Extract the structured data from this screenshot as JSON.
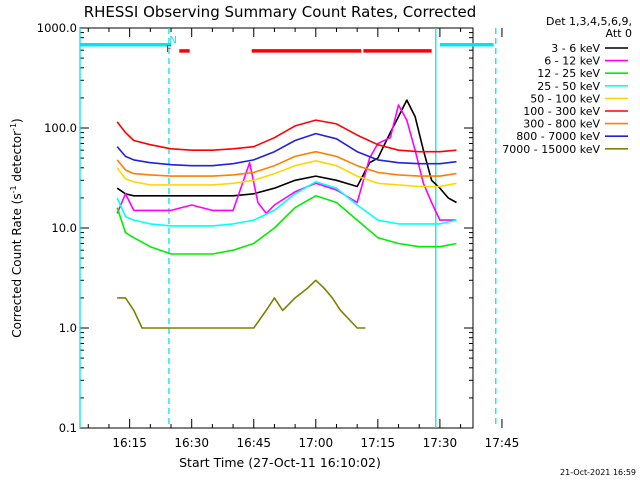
{
  "chart_data": {
    "type": "line",
    "title": "RHESSI Observing Summary Count Rates, Corrected",
    "xlabel": "Start Time (27-Oct-11 16:10:02)",
    "ylabel_main": "Corrected Count Rate (s",
    "ylabel_sup": "-1",
    "ylabel_mid": " detector",
    "ylabel_sup2": "-1",
    "ylabel_end": ")",
    "yscale": "log",
    "ylim": [
      0.1,
      1000
    ],
    "xlim_minutes": [
      3.0,
      98.0
    ],
    "y_ticks": [
      {
        "value": 0.1,
        "label": "0.1"
      },
      {
        "value": 1,
        "label": "1.0"
      },
      {
        "value": 10,
        "label": "10.0"
      },
      {
        "value": 100,
        "label": "100.0"
      },
      {
        "value": 1000,
        "label": "1000.0"
      }
    ],
    "x_ticks": [
      {
        "value": 15,
        "label": "16:15"
      },
      {
        "value": 30,
        "label": "16:30"
      },
      {
        "value": 45,
        "label": "16:45"
      },
      {
        "value": 60,
        "label": "17:00"
      },
      {
        "value": 75,
        "label": "17:15"
      },
      {
        "value": 90,
        "label": "17:30"
      },
      {
        "value": 105,
        "label": "17:45"
      }
    ],
    "legend_header": [
      "Det 1,3,4,5,6,9,",
      "Att 0"
    ],
    "legend_placement": "right",
    "footer": "21-Oct-2021 16:59",
    "night_lines": [
      {
        "minute": 24.5,
        "style": "dashed"
      },
      {
        "minute": 103.5,
        "style": "dashed"
      },
      {
        "minute": 3.0,
        "style": "solid"
      },
      {
        "minute": 89.0,
        "style": "solid"
      }
    ],
    "markers": [
      {
        "label": "N",
        "minute": 25.5,
        "color": "#00e5ee"
      },
      {
        "label": "F",
        "minute": 24.5,
        "color": "#ff0000"
      }
    ],
    "saa_bars": [
      {
        "start": 3.0,
        "end": 25.0,
        "value": 680
      },
      {
        "start": 90.0,
        "end": 103.0,
        "value": 680
      }
    ],
    "flare_bars": [
      {
        "start": 27.0,
        "end": 29.5,
        "value": 590
      },
      {
        "start": 44.5,
        "end": 71.0,
        "value": 590
      },
      {
        "start": 71.5,
        "end": 88.0,
        "value": 590
      }
    ],
    "series": [
      {
        "name": "3 - 6 keV",
        "color": "#000000",
        "x": [
          12,
          14,
          16,
          20,
          25,
          30,
          35,
          40,
          45,
          50,
          55,
          60,
          65,
          70,
          73,
          75,
          78,
          80,
          82,
          84,
          86,
          88,
          90,
          92,
          94
        ],
        "values": [
          25,
          22,
          21,
          21,
          21,
          21,
          21,
          21,
          22,
          25,
          30,
          33,
          30,
          26,
          45,
          50,
          90,
          130,
          190,
          130,
          60,
          30,
          25,
          20,
          18
        ]
      },
      {
        "name": "6 - 12 keV",
        "color": "#ff00ff",
        "x": [
          12,
          14,
          16,
          20,
          25,
          30,
          35,
          40,
          44,
          46,
          48,
          50,
          55,
          60,
          65,
          70,
          73,
          75,
          78,
          80,
          82,
          84,
          86,
          88,
          90,
          92,
          94
        ],
        "values": [
          14,
          22,
          15,
          15,
          15,
          17,
          15,
          15,
          45,
          18,
          14,
          17,
          23,
          28,
          24,
          18,
          50,
          70,
          80,
          170,
          120,
          60,
          28,
          18,
          12,
          12,
          12
        ]
      },
      {
        "name": "12 - 25 keV",
        "color": "#00ee00",
        "x": [
          12,
          14,
          16,
          20,
          25,
          30,
          35,
          40,
          45,
          50,
          55,
          60,
          65,
          70,
          75,
          80,
          85,
          90,
          94
        ],
        "values": [
          16,
          9,
          8,
          6.5,
          5.5,
          5.5,
          5.5,
          6,
          7,
          10,
          16,
          21,
          18,
          12,
          8,
          7,
          6.5,
          6.5,
          7
        ]
      },
      {
        "name": "25 - 50 keV",
        "color": "#00ffff",
        "x": [
          12,
          14,
          16,
          20,
          25,
          30,
          35,
          40,
          45,
          50,
          55,
          60,
          65,
          70,
          75,
          80,
          85,
          90,
          94
        ],
        "values": [
          20,
          13,
          12,
          11,
          10.5,
          10.5,
          10.5,
          11,
          12,
          15,
          22,
          29,
          25,
          17,
          12,
          11,
          11,
          11,
          12
        ]
      },
      {
        "name": "50 - 100 keV",
        "color": "#ffd700",
        "x": [
          12,
          14,
          16,
          20,
          25,
          30,
          35,
          40,
          45,
          50,
          55,
          60,
          65,
          70,
          75,
          80,
          85,
          90,
          94
        ],
        "values": [
          40,
          31,
          29,
          27,
          27,
          27,
          27,
          28,
          30,
          35,
          42,
          47,
          42,
          33,
          28,
          27,
          26,
          26,
          28
        ]
      },
      {
        "name": "100 - 300 keV",
        "color": "#ff0000",
        "x": [
          12,
          14,
          16,
          20,
          25,
          30,
          35,
          40,
          45,
          50,
          55,
          60,
          65,
          70,
          75,
          80,
          85,
          90,
          94
        ],
        "values": [
          115,
          90,
          75,
          68,
          62,
          60,
          60,
          62,
          65,
          80,
          105,
          120,
          110,
          85,
          68,
          60,
          58,
          58,
          60
        ]
      },
      {
        "name": "300 - 800 keV",
        "color": "#ff7f00",
        "x": [
          12,
          14,
          16,
          20,
          25,
          30,
          35,
          40,
          45,
          50,
          55,
          60,
          65,
          70,
          75,
          80,
          85,
          90,
          94
        ],
        "values": [
          48,
          38,
          35,
          34,
          33,
          33,
          33,
          34,
          36,
          42,
          52,
          58,
          52,
          42,
          36,
          34,
          33,
          33,
          35
        ]
      },
      {
        "name": "800 - 7000 keV",
        "color": "#2222dd",
        "x": [
          12,
          14,
          16,
          20,
          25,
          30,
          35,
          40,
          45,
          50,
          55,
          60,
          65,
          70,
          75,
          80,
          85,
          90,
          94
        ],
        "values": [
          65,
          52,
          48,
          45,
          43,
          42,
          42,
          44,
          48,
          58,
          75,
          88,
          78,
          58,
          48,
          45,
          44,
          44,
          46
        ]
      },
      {
        "name": "7000 - 15000 keV",
        "color": "#808000",
        "x": [
          12,
          14,
          16,
          18,
          20,
          45,
          48,
          50,
          52,
          55,
          58,
          60,
          62,
          64,
          66,
          70,
          72
        ],
        "values": [
          2,
          2,
          1.5,
          1,
          1,
          1,
          1.5,
          2,
          1.5,
          2,
          2.5,
          3,
          2.5,
          2,
          1.5,
          1,
          1
        ]
      }
    ]
  }
}
